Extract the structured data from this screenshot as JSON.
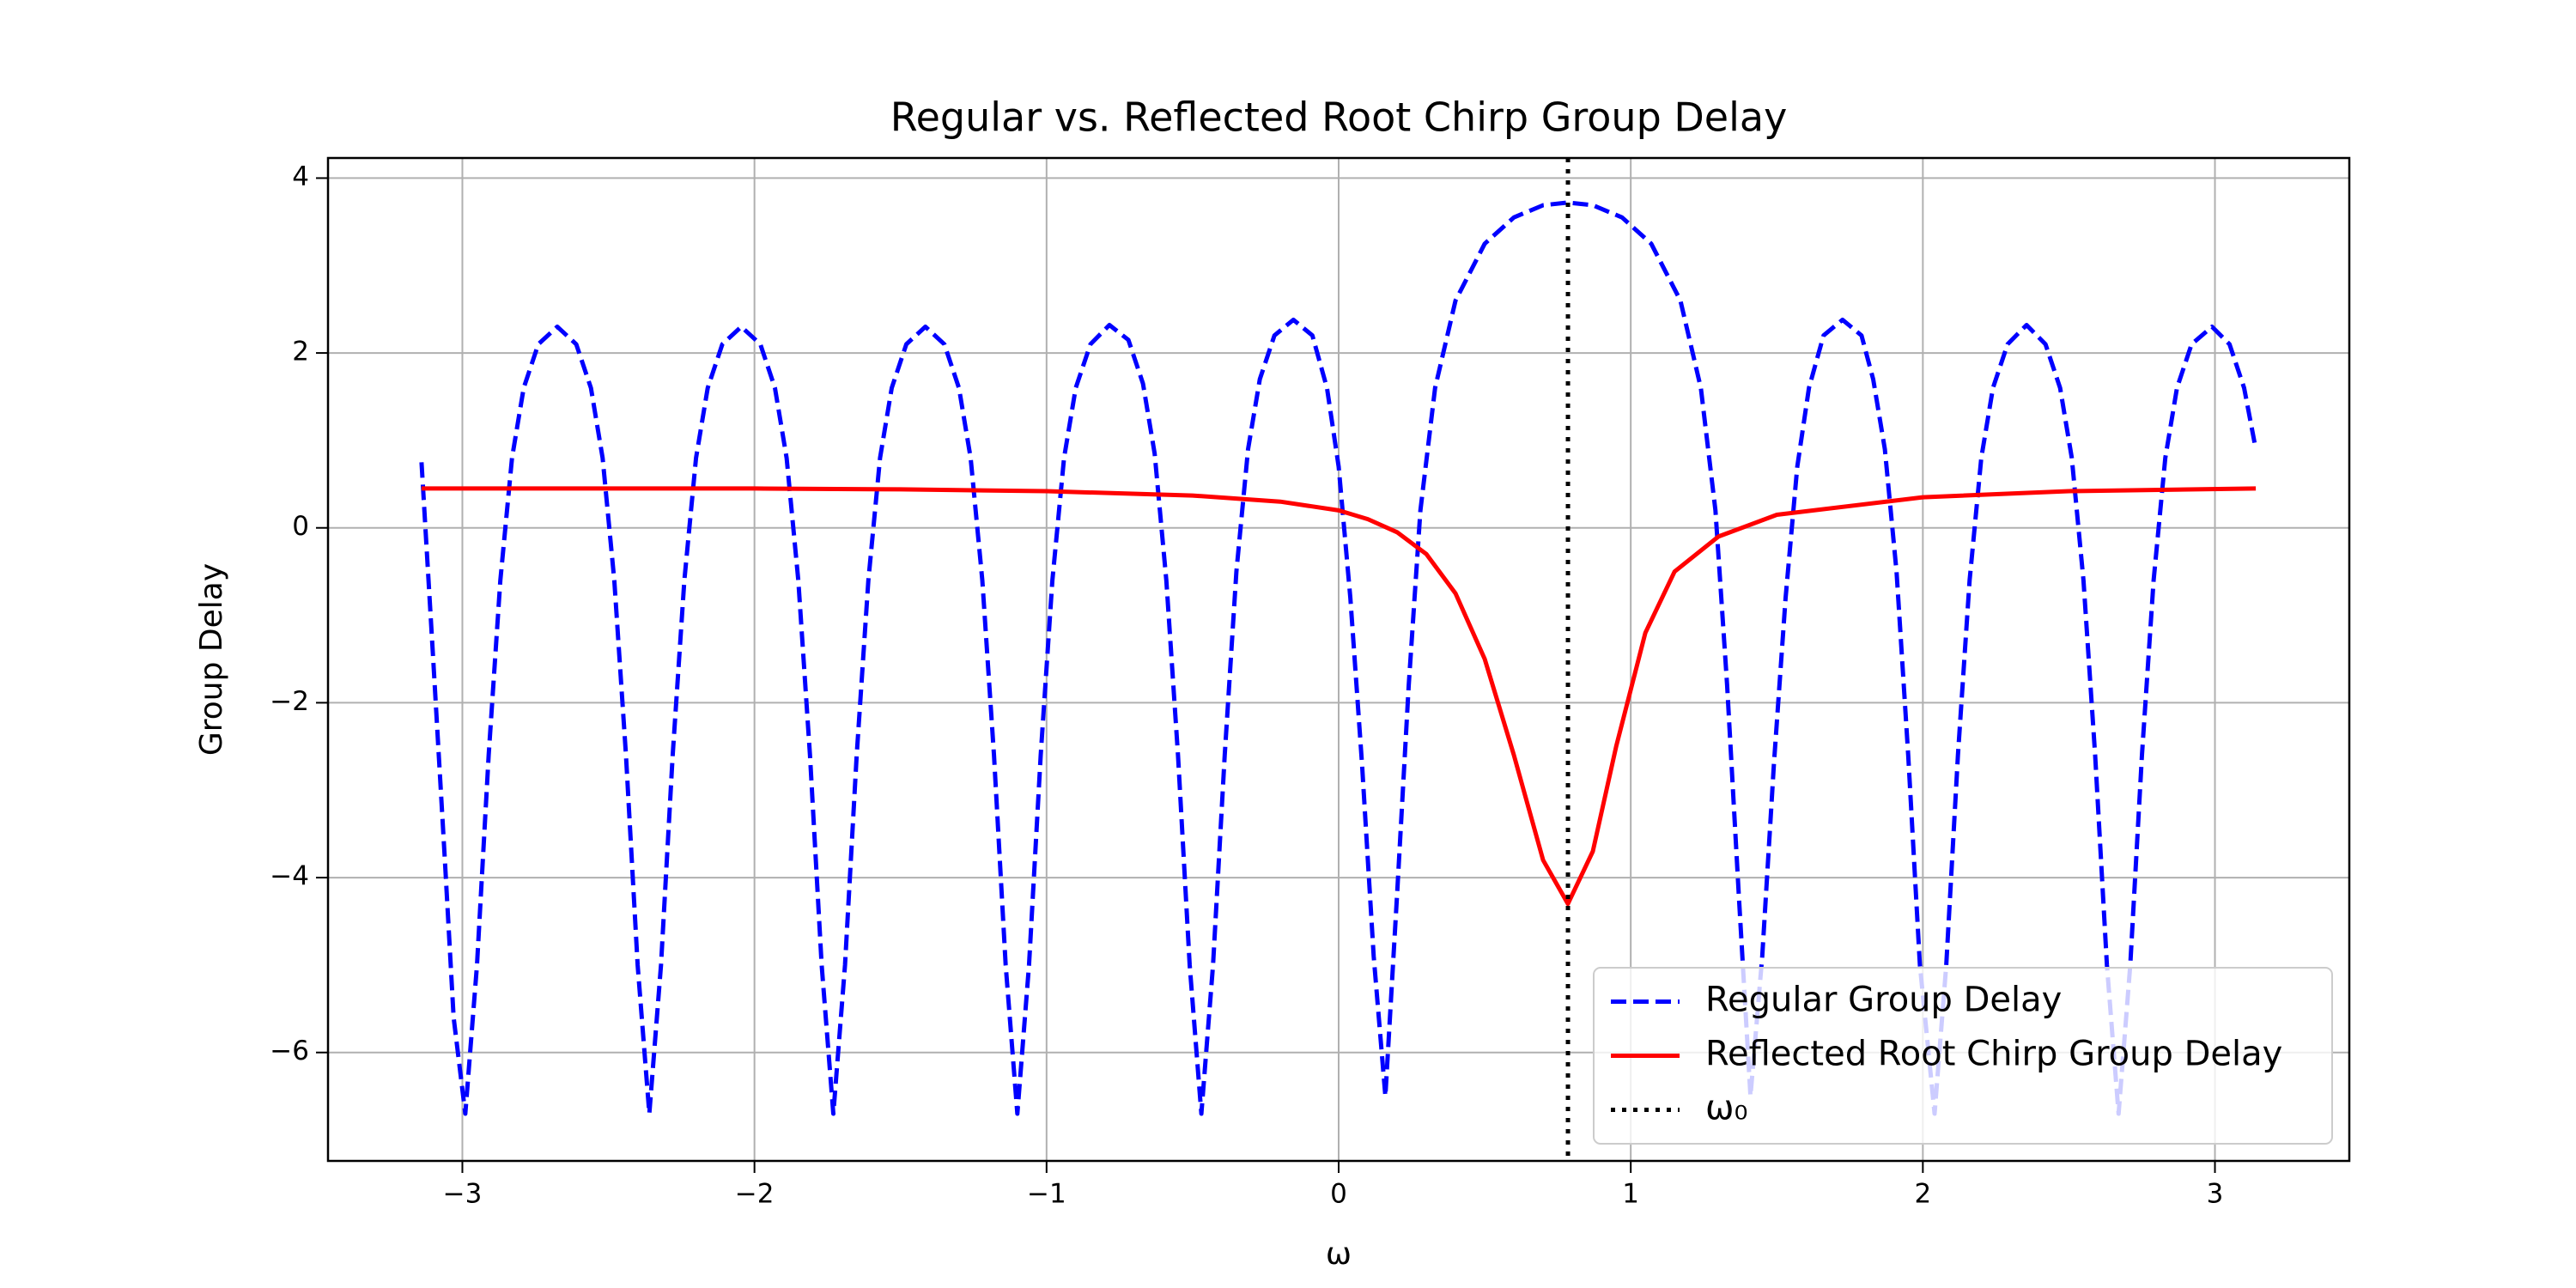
{
  "chart_data": {
    "type": "line",
    "title": "Regular vs. Reflected Root Chirp Group Delay",
    "xlabel": "ω",
    "ylabel": "Group Delay",
    "xlim": [
      -3.46,
      3.46
    ],
    "ylim": [
      -7.24,
      4.23
    ],
    "xticks": [
      {
        "value": -3,
        "label": "−3"
      },
      {
        "value": -2,
        "label": "−2"
      },
      {
        "value": -1,
        "label": "−1"
      },
      0,
      1,
      2,
      3
    ],
    "yticks": [
      {
        "value": -6,
        "label": "−6"
      },
      {
        "value": -4,
        "label": "−4"
      },
      {
        "value": -2,
        "label": "−2"
      },
      0,
      2,
      4
    ],
    "grid": true,
    "legend": "lower right",
    "series": [
      {
        "name": "Regular Group Delay",
        "color": "#0000ff",
        "style": "dashed",
        "x": [
          -3.14,
          -3.1,
          -3.06,
          -3.03,
          -2.99,
          -2.95,
          -2.91,
          -2.87,
          -2.83,
          -2.79,
          -2.74,
          -2.675,
          -2.61,
          -2.56,
          -2.52,
          -2.48,
          -2.44,
          -2.4,
          -2.36,
          -2.32,
          -2.28,
          -2.24,
          -2.2,
          -2.16,
          -2.11,
          -2.045,
          -1.98,
          -1.93,
          -1.89,
          -1.85,
          -1.81,
          -1.77,
          -1.73,
          -1.69,
          -1.65,
          -1.61,
          -1.57,
          -1.53,
          -1.48,
          -1.415,
          -1.35,
          -1.3,
          -1.26,
          -1.22,
          -1.18,
          -1.14,
          -1.1,
          -1.06,
          -1.02,
          -0.98,
          -0.94,
          -0.9,
          -0.85,
          -0.785,
          -0.72,
          -0.67,
          -0.63,
          -0.59,
          -0.55,
          -0.51,
          -0.47,
          -0.43,
          -0.39,
          -0.35,
          -0.31,
          -0.27,
          -0.22,
          -0.155,
          -0.09,
          -0.04,
          0.0,
          0.04,
          0.08,
          0.12,
          0.16,
          0.2,
          0.24,
          0.28,
          0.33,
          0.4,
          0.5,
          0.6,
          0.7,
          0.785,
          0.87,
          0.97,
          1.07,
          1.17,
          1.24,
          1.29,
          1.33,
          1.37,
          1.41,
          1.45,
          1.49,
          1.53,
          1.57,
          1.61,
          1.66,
          1.725,
          1.79,
          1.83,
          1.87,
          1.91,
          1.95,
          1.99,
          2.04,
          2.08,
          2.12,
          2.16,
          2.2,
          2.24,
          2.29,
          2.355,
          2.42,
          2.47,
          2.51,
          2.55,
          2.59,
          2.63,
          2.67,
          2.71,
          2.75,
          2.79,
          2.83,
          2.87,
          2.92,
          2.99,
          3.05,
          3.1,
          3.14
        ],
        "values": [
          0.75,
          -1.5,
          -3.8,
          -5.6,
          -6.7,
          -5.0,
          -2.6,
          -0.6,
          0.8,
          1.6,
          2.1,
          2.3,
          2.1,
          1.6,
          0.8,
          -0.6,
          -2.6,
          -5.0,
          -6.7,
          -5.0,
          -2.6,
          -0.6,
          0.8,
          1.6,
          2.1,
          2.3,
          2.1,
          1.6,
          0.8,
          -0.6,
          -2.6,
          -5.0,
          -6.7,
          -5.0,
          -2.6,
          -0.6,
          0.8,
          1.6,
          2.1,
          2.3,
          2.1,
          1.6,
          0.8,
          -0.6,
          -2.6,
          -5.0,
          -6.7,
          -5.0,
          -2.6,
          -0.6,
          0.8,
          1.6,
          2.1,
          2.32,
          2.15,
          1.65,
          0.85,
          -0.6,
          -2.6,
          -5.0,
          -6.7,
          -5.0,
          -2.6,
          -0.5,
          0.9,
          1.7,
          2.2,
          2.38,
          2.2,
          1.6,
          0.7,
          -0.8,
          -2.7,
          -4.9,
          -6.5,
          -4.2,
          -1.8,
          0.2,
          1.6,
          2.6,
          3.25,
          3.55,
          3.69,
          3.72,
          3.69,
          3.55,
          3.25,
          2.6,
          1.6,
          0.2,
          -1.8,
          -4.2,
          -6.5,
          -4.9,
          -2.7,
          -0.8,
          0.7,
          1.6,
          2.2,
          2.38,
          2.2,
          1.7,
          0.9,
          -0.5,
          -2.6,
          -5.0,
          -6.7,
          -5.0,
          -2.6,
          -0.6,
          0.8,
          1.6,
          2.1,
          2.32,
          2.1,
          1.6,
          0.8,
          -0.6,
          -2.6,
          -5.0,
          -6.7,
          -5.0,
          -2.6,
          -0.6,
          0.8,
          1.6,
          2.1,
          2.3,
          2.1,
          1.6,
          0.9
        ]
      },
      {
        "name": "Reflected Root Chirp Group Delay",
        "color": "#ff0000",
        "style": "solid",
        "x": [
          -3.14,
          -2.5,
          -2,
          -1.5,
          -1,
          -0.5,
          -0.2,
          0,
          0.1,
          0.2,
          0.3,
          0.4,
          0.5,
          0.6,
          0.7,
          0.785,
          0.87,
          0.95,
          1.05,
          1.15,
          1.3,
          1.5,
          2,
          2.5,
          3.14
        ],
        "values": [
          0.45,
          0.45,
          0.45,
          0.44,
          0.42,
          0.37,
          0.3,
          0.2,
          0.1,
          -0.05,
          -0.3,
          -0.75,
          -1.5,
          -2.6,
          -3.8,
          -4.3,
          -3.7,
          -2.5,
          -1.2,
          -0.5,
          -0.1,
          0.15,
          0.35,
          0.42,
          0.45
        ]
      }
    ],
    "vlines": [
      {
        "name": "ω₀",
        "x": 0.785,
        "color": "#000000",
        "style": "dotted"
      }
    ]
  }
}
